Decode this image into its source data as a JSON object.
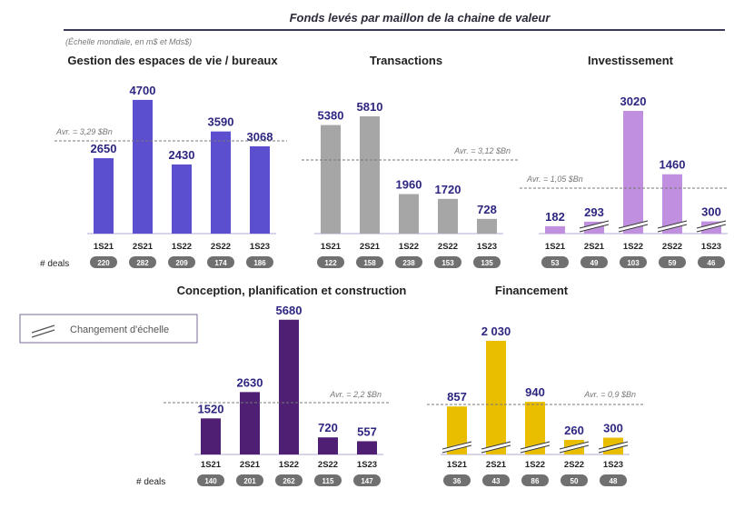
{
  "title": "Fonds levés par maillon de la chaine de valeur",
  "subtitle": "(Échelle mondiale, en m$ et Mds$)",
  "deals_label": "# deals",
  "legend": {
    "label": "Changement d'échelle",
    "icon": "scale-break-icon"
  },
  "chart_data": [
    {
      "type": "bar",
      "title": "Gestion des espaces de vie / bureaux",
      "categories": [
        "1S21",
        "2S21",
        "1S22",
        "2S22",
        "1S23"
      ],
      "values": [
        2650,
        4700,
        2430,
        3590,
        3068
      ],
      "deals": [
        "220",
        "282",
        "209",
        "174",
        "186"
      ],
      "average_label": "Avr. = 3,29 $Bn",
      "average": 3290,
      "color": "#5b4fcf",
      "scale_break": false
    },
    {
      "type": "bar",
      "title": "Transactions",
      "categories": [
        "1S21",
        "2S21",
        "1S22",
        "2S22",
        "1S23"
      ],
      "values": [
        5380,
        5810,
        1960,
        1720,
        728
      ],
      "deals": [
        "122",
        "158",
        "238",
        "153",
        "135"
      ],
      "average_label": "Avr. = 3,12 $Bn",
      "average": 3120,
      "color": "#a6a6a6",
      "scale_break": false
    },
    {
      "type": "bar",
      "title": "Investissement",
      "categories": [
        "1S21",
        "2S21",
        "1S22",
        "2S22",
        "1S23"
      ],
      "values": [
        182,
        293,
        3020,
        1460,
        300
      ],
      "deals": [
        "53",
        "49",
        "103",
        "59",
        "46"
      ],
      "average_label": "Avr. = 1,05 $Bn",
      "average": 1050,
      "color": "#c08fe0",
      "scale_break": true
    },
    {
      "type": "bar",
      "title": "Conception, planification et construction",
      "categories": [
        "1S21",
        "2S21",
        "1S22",
        "2S22",
        "1S23"
      ],
      "values": [
        1520,
        2630,
        5680,
        720,
        557
      ],
      "deals": [
        "140",
        "201",
        "262",
        "115",
        "147"
      ],
      "average_label": "Avr. = 2,2 $Bn",
      "average": 2200,
      "color": "#4e1f73",
      "scale_break": false
    },
    {
      "type": "bar",
      "title": "Financement",
      "categories": [
        "1S21",
        "2S21",
        "1S22",
        "2S22",
        "1S23"
      ],
      "values": [
        857,
        "2 030",
        940,
        260,
        300
      ],
      "deals": [
        "36",
        "43",
        "86",
        "50",
        "48"
      ],
      "average_label": "Avr. = 0,9 $Bn",
      "average": 900,
      "color": "#e9be00",
      "scale_break": true
    }
  ]
}
